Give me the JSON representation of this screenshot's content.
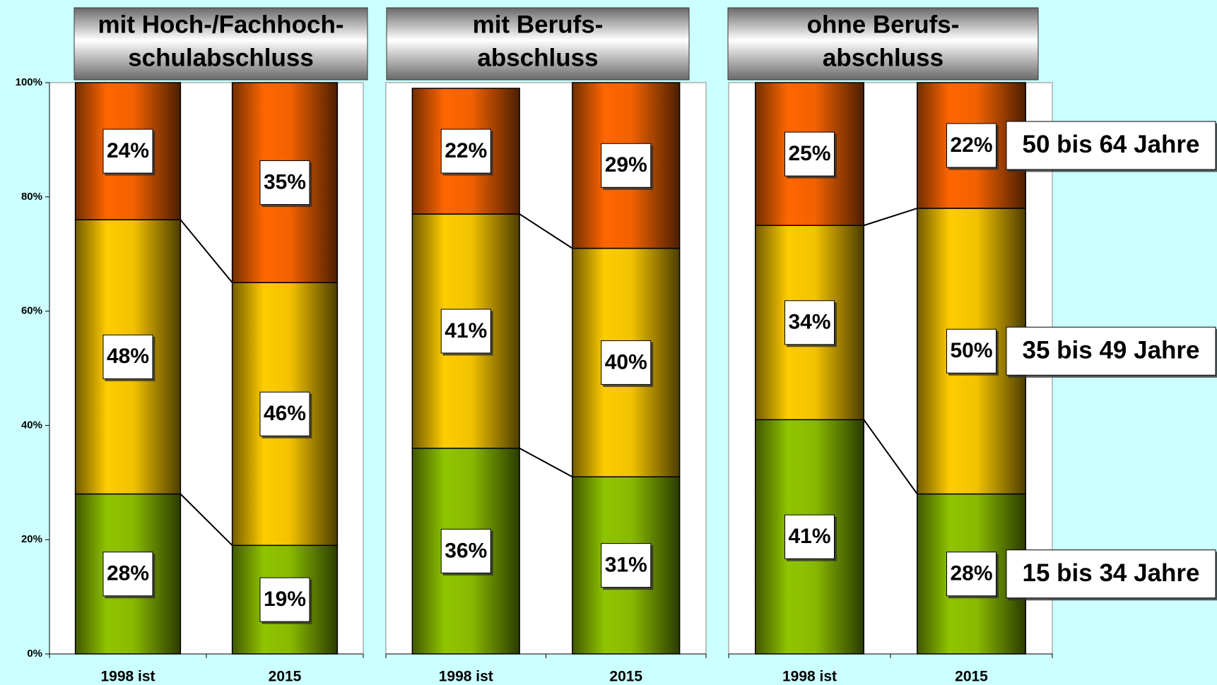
{
  "chart_data": {
    "type": "bar",
    "stacked": true,
    "ylim": [
      0,
      100
    ],
    "yticks": [
      {
        "value": 0,
        "label": "0%"
      },
      {
        "value": 20,
        "label": "20%"
      },
      {
        "value": 40,
        "label": "40%"
      },
      {
        "value": 60,
        "label": "60%"
      },
      {
        "value": 80,
        "label": "80%"
      },
      {
        "value": 100,
        "label": "100%"
      }
    ],
    "series": [
      {
        "name": "15 bis 34 Jahre",
        "color": "#8fc400"
      },
      {
        "name": "35 bis 49 Jahre",
        "color": "#ffcc00"
      },
      {
        "name": "50 bis 64 Jahre",
        "color": "#ff6600"
      }
    ],
    "panels": [
      {
        "title": [
          "mit Hoch-/Fachhoch-",
          "schulabschluss"
        ],
        "categories": [
          "1998 ist",
          "2015"
        ],
        "values": [
          [
            28,
            19
          ],
          [
            48,
            46
          ],
          [
            24,
            35
          ]
        ],
        "value_labels": [
          [
            "28%",
            "19%"
          ],
          [
            "48%",
            "46%"
          ],
          [
            "24%",
            "35%"
          ]
        ]
      },
      {
        "title": [
          "mit Berufs-",
          "abschluss"
        ],
        "categories": [
          "1998 ist",
          "2015"
        ],
        "values": [
          [
            36,
            31
          ],
          [
            41,
            40
          ],
          [
            22,
            29
          ]
        ],
        "value_labels": [
          [
            "36%",
            "31%"
          ],
          [
            "41%",
            "40%"
          ],
          [
            "22%",
            "29%"
          ]
        ]
      },
      {
        "title": [
          "ohne Berufs-",
          "abschluss"
        ],
        "categories": [
          "1998 ist",
          "2015"
        ],
        "values": [
          [
            41,
            28
          ],
          [
            34,
            50
          ],
          [
            25,
            22
          ]
        ],
        "value_labels": [
          [
            "41%",
            "28%"
          ],
          [
            "34%",
            "50%"
          ],
          [
            "25%",
            "22%"
          ]
        ]
      }
    ]
  }
}
